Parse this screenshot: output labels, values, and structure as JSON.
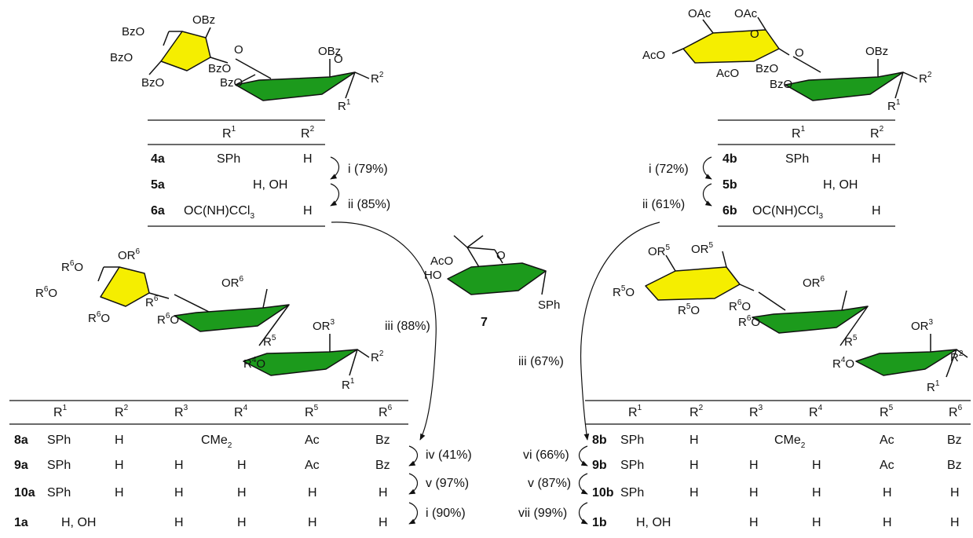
{
  "colors": {
    "furanose_ring": "#f5ee00",
    "galactose_ring": "#f5ee00",
    "mannose_ring": "#1c9a1c"
  },
  "left_top": {
    "substituents": [
      "BzO",
      "OBz",
      "BzO",
      "BzO",
      "BzO",
      "BzO",
      "OBz",
      "O",
      "O",
      "R",
      "R"
    ],
    "headers": [
      "R",
      "R"
    ],
    "rows": [
      {
        "id": "4a",
        "r1": "SPh",
        "r2": "H"
      },
      {
        "id": "5a",
        "merged": "H, OH"
      },
      {
        "id": "6a",
        "r1": "OC(NH)CCl",
        "sub": "3",
        "r2": "H"
      }
    ],
    "steps": [
      "i (79%)",
      "ii (85%)"
    ]
  },
  "right_top": {
    "substituents": [
      "OAc",
      "OAc",
      "AcO",
      "AcO",
      "BzO",
      "BzO",
      "OBz",
      "O",
      "O",
      "R",
      "R"
    ],
    "headers": [
      "R",
      "R"
    ],
    "rows": [
      {
        "id": "4b",
        "r1": "SPh",
        "r2": "H"
      },
      {
        "id": "5b",
        "merged": "H, OH"
      },
      {
        "id": "6b",
        "r1": "OC(NH)CCl",
        "sub": "3",
        "r2": "H"
      }
    ],
    "steps": [
      "i (72%)",
      "ii (61%)"
    ]
  },
  "center": {
    "compound": "7",
    "labels": [
      "AcO",
      "HO",
      "O",
      "SPh"
    ],
    "step_left": "iii (88%)",
    "step_right": "iii (67%)"
  },
  "left_bottom": {
    "headers": [
      "R",
      "R",
      "R",
      "R",
      "R",
      "R"
    ],
    "rows": [
      {
        "id": "8a",
        "cells": [
          "SPh",
          "H",
          "",
          "",
          "Ac",
          "Bz"
        ],
        "merged": "CMe",
        "merged_sub": "2"
      },
      {
        "id": "9a",
        "cells": [
          "SPh",
          "H",
          "H",
          "H",
          "Ac",
          "Bz"
        ]
      },
      {
        "id": "10a",
        "cells": [
          "SPh",
          "H",
          "H",
          "H",
          "H",
          "H"
        ]
      },
      {
        "id": "1a",
        "r12": "H, OH",
        "cells": [
          "H",
          "H",
          "H",
          "H"
        ]
      }
    ],
    "steps": [
      "iv (41%)",
      "v (97%)",
      "i (90%)"
    ]
  },
  "right_bottom": {
    "headers": [
      "R",
      "R",
      "R",
      "R",
      "R",
      "R"
    ],
    "rows": [
      {
        "id": "8b",
        "cells": [
          "SPh",
          "H",
          "",
          "",
          "Ac",
          "Bz"
        ],
        "merged": "CMe",
        "merged_sub": "2"
      },
      {
        "id": "9b",
        "cells": [
          "SPh",
          "H",
          "H",
          "H",
          "Ac",
          "Bz"
        ]
      },
      {
        "id": "10b",
        "cells": [
          "SPh",
          "H",
          "H",
          "H",
          "H",
          "H"
        ]
      },
      {
        "id": "1b",
        "r12": "H, OH",
        "cells": [
          "H",
          "H",
          "H",
          "H"
        ]
      }
    ],
    "steps": [
      "vi (66%)",
      "v (87%)",
      "vii (99%)"
    ]
  }
}
